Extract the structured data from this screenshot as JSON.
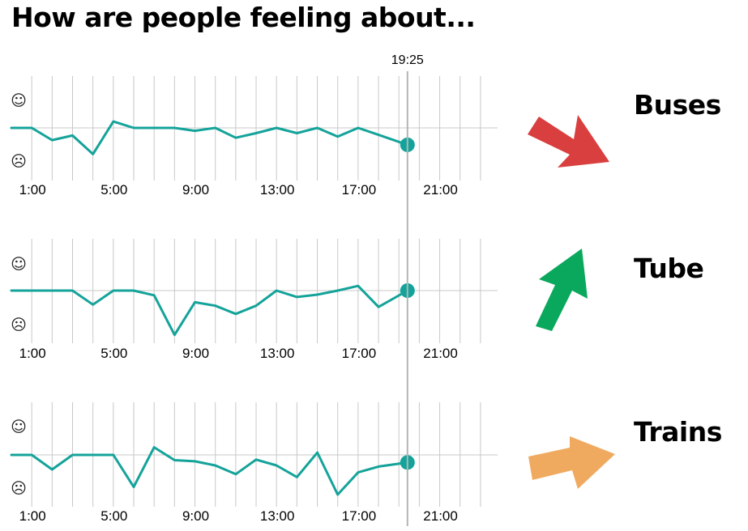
{
  "title": "How are people feeling about...",
  "now_label": "19:25",
  "colors": {
    "line": "#14a39a",
    "grid": "#c8c8c8",
    "now_line": "#b4b4b4",
    "down": "#d93f3f",
    "up": "#0aa85c",
    "flat": "#f0aa60"
  },
  "icons": {
    "happy": "☺",
    "sad": "☹"
  },
  "chart_data": [
    {
      "type": "line",
      "name": "Buses",
      "trend": "down",
      "x_ticks": [
        "1:00",
        "5:00",
        "9:00",
        "13:00",
        "17:00",
        "21:00"
      ],
      "x_range": [
        0,
        24
      ],
      "y_range": [
        -1,
        1
      ],
      "now": 19.42,
      "x": [
        0,
        1,
        2,
        3,
        4,
        5,
        6,
        7,
        8,
        9,
        10,
        11,
        12,
        13,
        14,
        15,
        16,
        17,
        18,
        19.42
      ],
      "values": [
        0,
        0,
        -0.21,
        -0.13,
        -0.45,
        0.11,
        0,
        0,
        0,
        -0.05,
        0,
        -0.17,
        -0.09,
        0,
        -0.09,
        0,
        -0.15,
        0,
        -0.12,
        -0.29
      ]
    },
    {
      "type": "line",
      "name": "Tube",
      "trend": "up",
      "x_ticks": [
        "1:00",
        "5:00",
        "9:00",
        "13:00",
        "17:00",
        "21:00"
      ],
      "x_range": [
        0,
        24
      ],
      "y_range": [
        -1,
        1
      ],
      "now": 19.42,
      "x": [
        0,
        1,
        2,
        3,
        4,
        5,
        6,
        7,
        8,
        9,
        10,
        11,
        12,
        13,
        14,
        15,
        16,
        17,
        18,
        19.42
      ],
      "values": [
        0,
        0,
        0,
        0,
        -0.24,
        0,
        0,
        -0.08,
        -0.76,
        -0.2,
        -0.26,
        -0.4,
        -0.26,
        0,
        -0.11,
        -0.07,
        0,
        0.08,
        -0.28,
        0
      ]
    },
    {
      "type": "line",
      "name": "Trains",
      "trend": "flat",
      "x_ticks": [
        "1:00",
        "5:00",
        "9:00",
        "13:00",
        "17:00",
        "21:00"
      ],
      "x_range": [
        0,
        24
      ],
      "y_range": [
        -1,
        1
      ],
      "now": 19.42,
      "x": [
        0,
        1,
        2,
        3,
        4,
        5,
        6,
        7,
        8,
        9,
        10,
        11,
        12,
        13,
        14,
        15,
        16,
        17,
        18,
        19.42
      ],
      "values": [
        0,
        0,
        -0.25,
        0,
        0,
        0,
        -0.55,
        0.13,
        -0.09,
        -0.11,
        -0.18,
        -0.33,
        -0.08,
        -0.18,
        -0.38,
        0.04,
        -0.68,
        -0.3,
        -0.2,
        -0.13
      ]
    }
  ]
}
